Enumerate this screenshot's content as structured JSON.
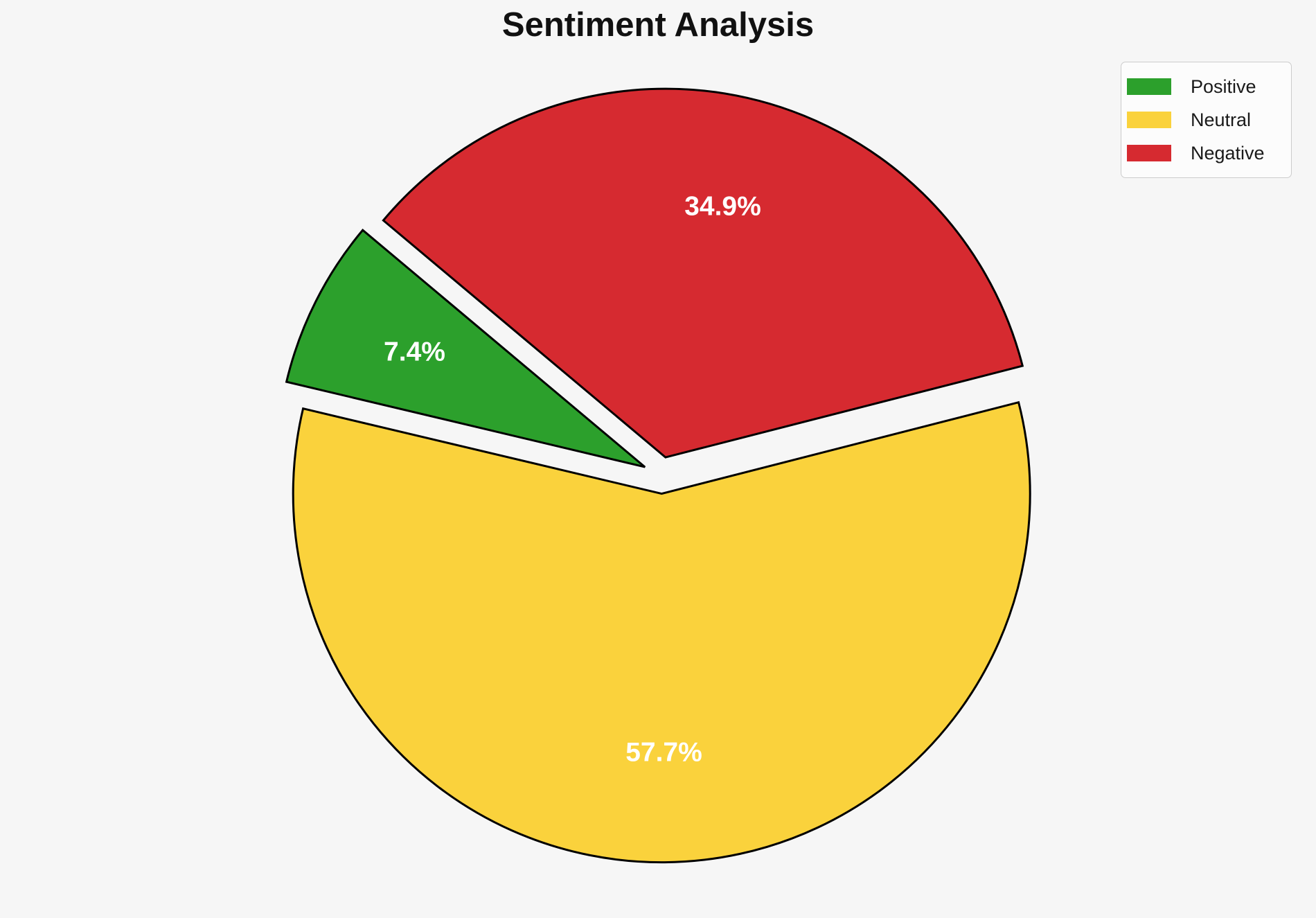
{
  "chart_data": {
    "type": "pie",
    "title": "Sentiment Analysis",
    "series": [
      {
        "label": "Positive",
        "value": 7.4,
        "pct_label": "7.4%",
        "color": "#2ca02c"
      },
      {
        "label": "Neutral",
        "value": 57.7,
        "pct_label": "57.7%",
        "color": "#fad23c"
      },
      {
        "label": "Negative",
        "value": 34.9,
        "pct_label": "34.9%",
        "color": "#d62a30"
      }
    ],
    "startangle": 140,
    "counterclock": true,
    "explode": 0.05,
    "pctdistance": 0.7,
    "pct_label_color": "#ffffff",
    "edge_color": "#000000",
    "background": "#f6f6f6",
    "legend_position": "upper right"
  }
}
